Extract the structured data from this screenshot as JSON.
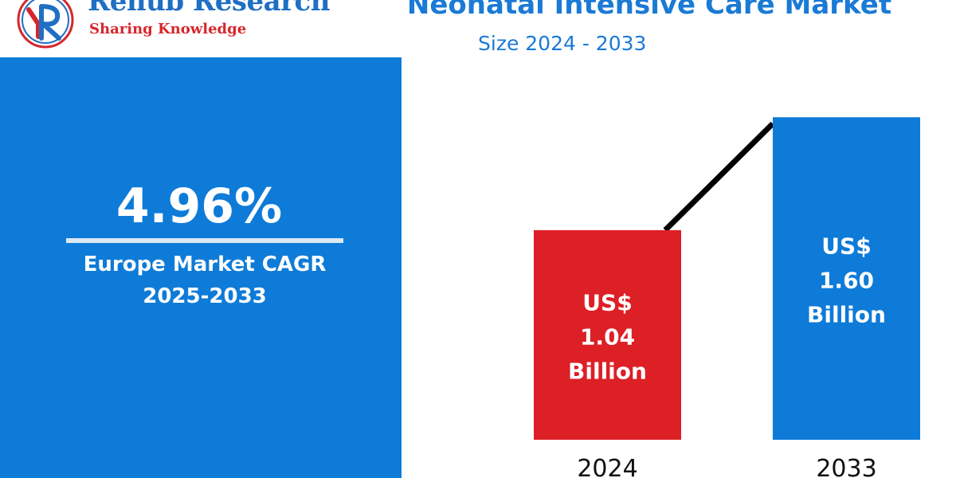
{
  "logo": {
    "name": "Renub Research",
    "tagline": "Sharing Knowledge"
  },
  "header": {
    "title": "Neonatal Intensive Care Market",
    "subtitle": "Size 2024 - 2033"
  },
  "cagr": {
    "value": "4.96%",
    "label_line1": "Europe Market CAGR",
    "label_line2": "2025-2033"
  },
  "colors": {
    "panel_blue": "#0e7bd8",
    "bar_2024": "#dd1f26",
    "bar_2033": "#0e7bd8",
    "trend_line": "#000000",
    "title_blue": "#1a7ad6",
    "logo_red": "#d6262c"
  },
  "chart_data": {
    "type": "bar",
    "categories": [
      "2024",
      "2033"
    ],
    "values": [
      1.04,
      1.6
    ],
    "value_labels": [
      [
        "US$",
        "1.04",
        "Billion"
      ],
      [
        "US$",
        "1.60",
        "Billion"
      ]
    ],
    "bar_colors": [
      "#dd1f26",
      "#0e7bd8"
    ],
    "trend_line": true,
    "title": "Neonatal Intensive Care Market",
    "xlabel": "",
    "ylabel": "",
    "grid": false
  }
}
